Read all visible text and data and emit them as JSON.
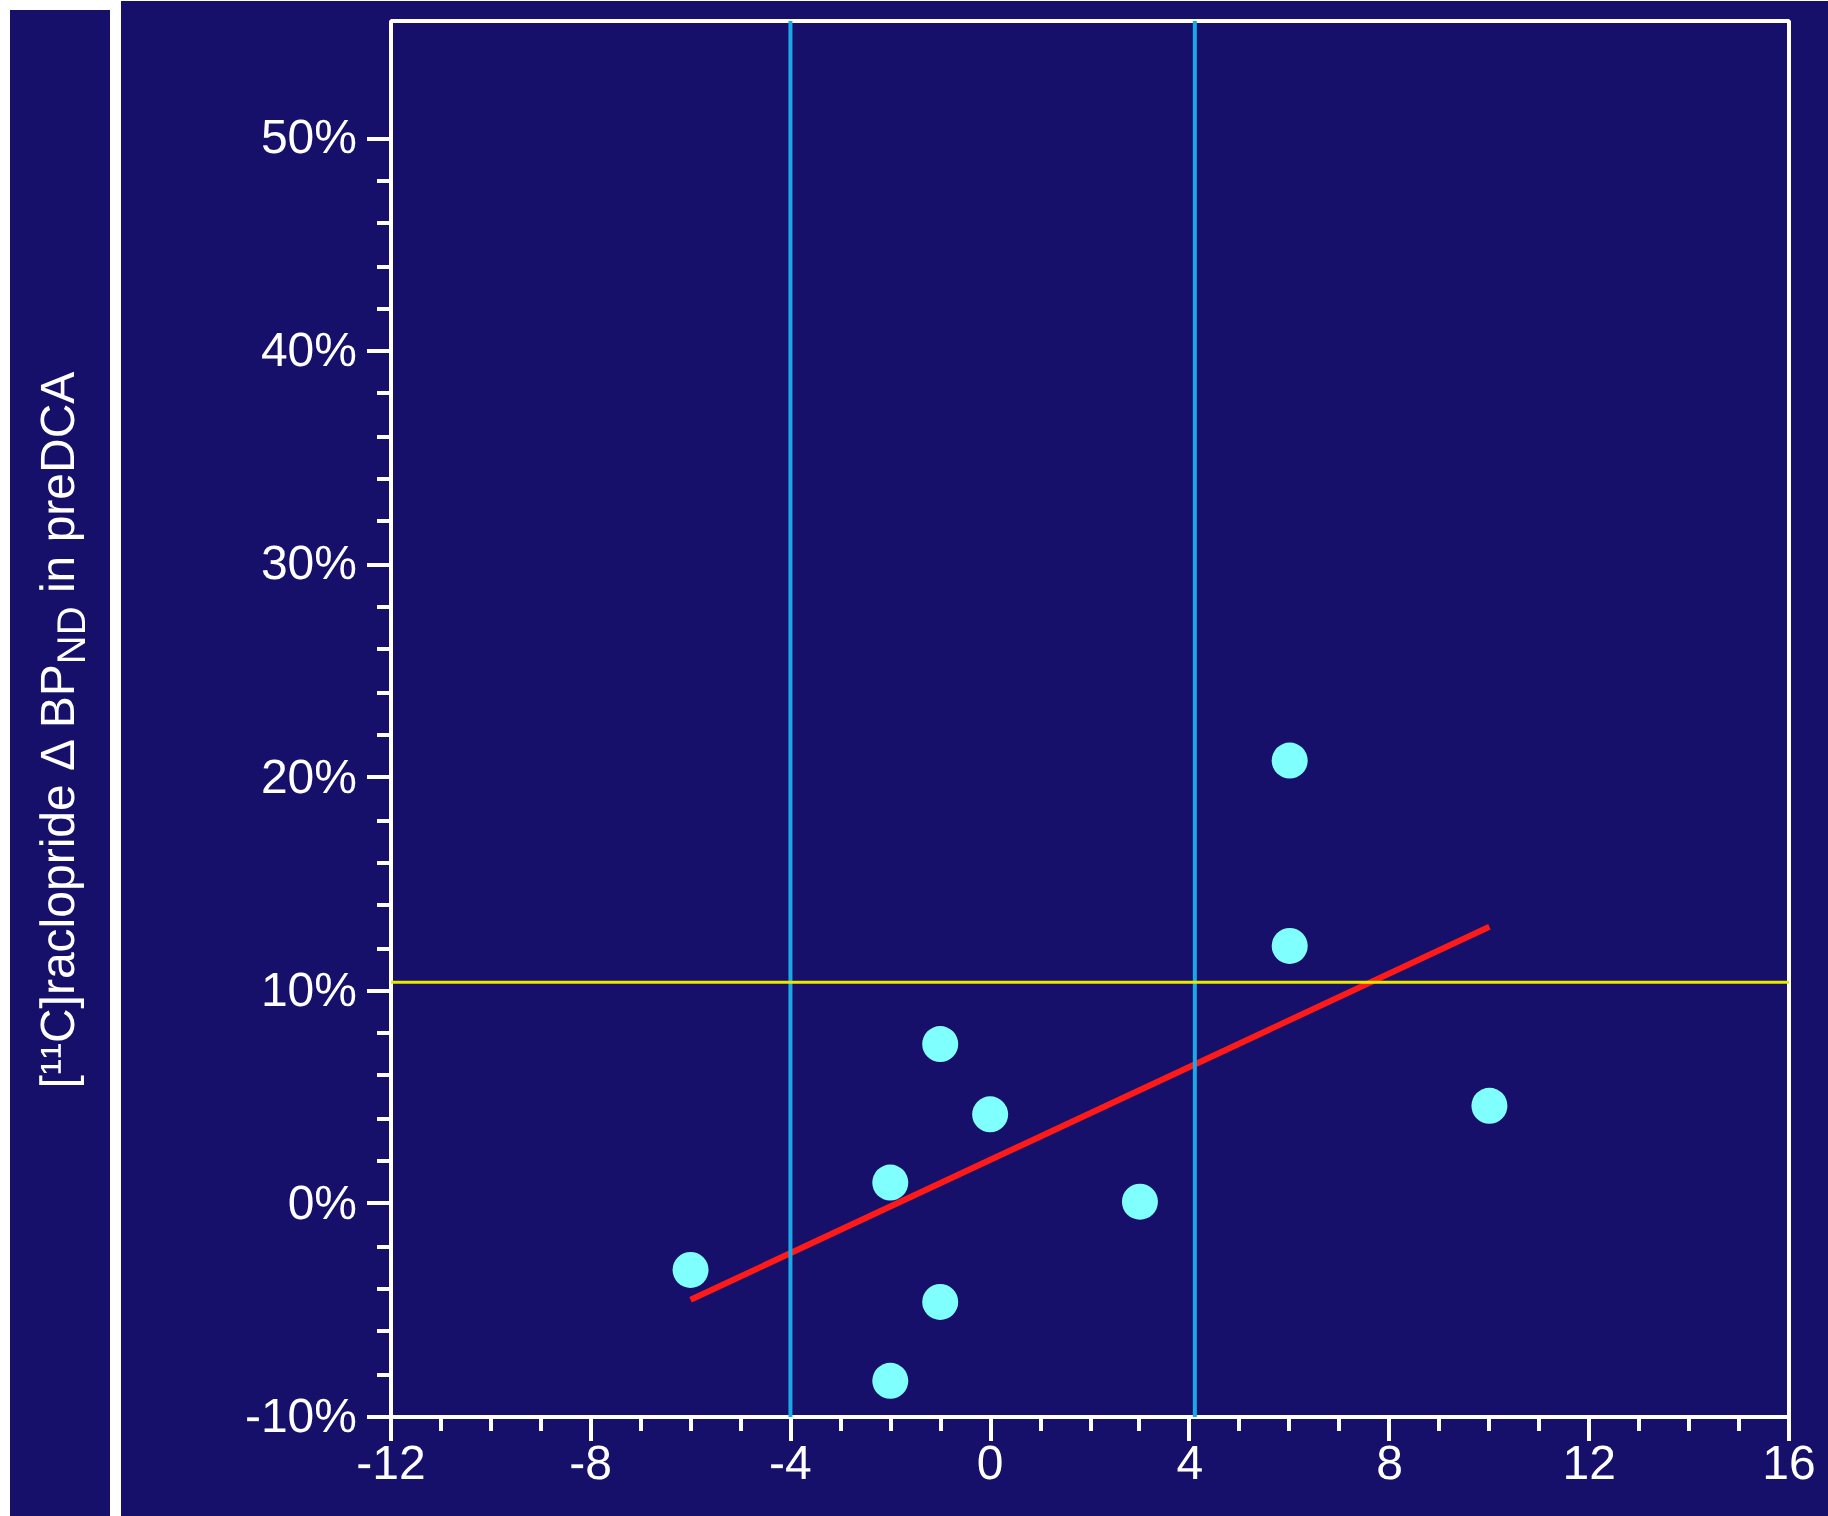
{
  "chart_data": {
    "type": "scatter",
    "ylabel": "[¹¹C]raclopride Δ BP$_{ND}$ in preDCA",
    "xlim": [
      -12,
      16
    ],
    "xticks": [
      -12,
      -8,
      -4,
      0,
      4,
      8,
      12,
      16
    ],
    "ylim": [
      -10,
      55.5
    ],
    "yticks": [
      {
        "value": -10,
        "label": "-10%"
      },
      {
        "value": 0,
        "label": "0%"
      },
      {
        "value": 10,
        "label": "10%"
      },
      {
        "value": 20,
        "label": "20%"
      },
      {
        "value": 30,
        "label": "30%"
      },
      {
        "value": 40,
        "label": "40%"
      },
      {
        "value": 50,
        "label": "50%"
      }
    ],
    "grid": false,
    "series": [
      {
        "marker": "circle",
        "color": "#80ffff",
        "x": [
          -6,
          -2,
          -2,
          -1,
          -1,
          0,
          3,
          6,
          6,
          10
        ],
        "values": [
          -3.1,
          1.0,
          -8.3,
          7.5,
          -4.6,
          4.2,
          0.1,
          20.8,
          12.1,
          4.6
        ]
      },
      {
        "type": "line",
        "color": "#ff1a1a",
        "x": [
          -6,
          10
        ],
        "values": [
          -4.5,
          13.0
        ]
      }
    ],
    "ref_lines": [
      {
        "axis": "x",
        "value": -4,
        "color": "#1aa8e8"
      },
      {
        "axis": "x",
        "value": 4.1,
        "color": "#1aa8e8"
      },
      {
        "axis": "y",
        "value": 10.4,
        "color": "#e8e800"
      }
    ]
  }
}
